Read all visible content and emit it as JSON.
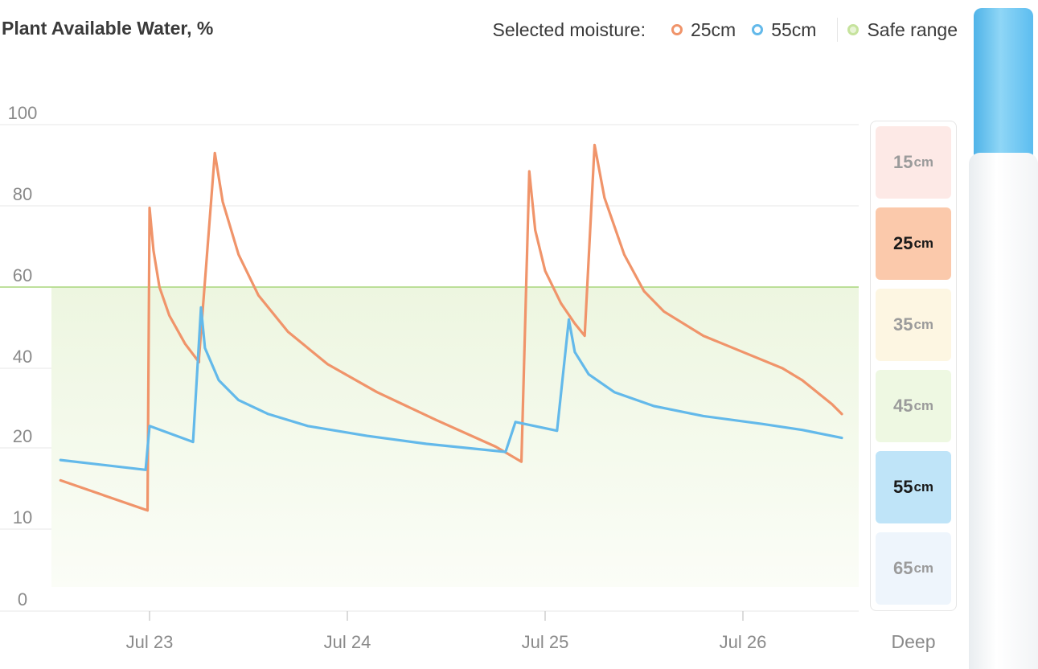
{
  "header": {
    "title": "Plant Available Water, %",
    "legend_prefix": "Selected moisture:",
    "legend_items": [
      {
        "label": "25cm",
        "color": "#f0946a"
      },
      {
        "label": "55cm",
        "color": "#63b9ea"
      },
      {
        "label": "Safe range",
        "color": "#b5d98a"
      }
    ]
  },
  "chart_data": {
    "type": "line",
    "title": "Plant Available Water, %",
    "y_ticks": [
      "100",
      "80",
      "60",
      "40",
      "20",
      "10",
      "0"
    ],
    "x_ticks": [
      "Jul 23",
      "Jul 24",
      "Jul 25",
      "Jul 26"
    ],
    "safe_range": [
      0,
      60
    ],
    "x_unit": "days from Jul 22 00:00",
    "series": [
      {
        "name": "25cm",
        "color": "#f0946a",
        "points": [
          [
            0.55,
            16.0
          ],
          [
            0.99,
            12.3
          ],
          [
            1.0,
            79.5
          ],
          [
            1.02,
            69
          ],
          [
            1.05,
            60
          ],
          [
            1.1,
            53
          ],
          [
            1.18,
            46
          ],
          [
            1.25,
            41.5
          ],
          [
            1.25,
            42.5
          ],
          [
            1.33,
            93
          ],
          [
            1.37,
            81
          ],
          [
            1.45,
            68
          ],
          [
            1.55,
            58
          ],
          [
            1.7,
            49
          ],
          [
            1.9,
            41
          ],
          [
            2.15,
            34
          ],
          [
            2.45,
            27
          ],
          [
            2.75,
            20.3
          ],
          [
            2.88,
            18.3
          ],
          [
            2.92,
            88.5
          ],
          [
            2.95,
            74
          ],
          [
            3.0,
            64
          ],
          [
            3.08,
            56
          ],
          [
            3.15,
            51
          ],
          [
            3.2,
            48
          ],
          [
            3.25,
            95
          ],
          [
            3.3,
            82
          ],
          [
            3.4,
            68
          ],
          [
            3.5,
            59
          ],
          [
            3.6,
            54
          ],
          [
            3.8,
            48
          ],
          [
            4.0,
            44
          ],
          [
            4.2,
            40
          ],
          [
            4.3,
            37
          ],
          [
            4.45,
            31
          ],
          [
            4.5,
            28.5
          ]
        ]
      },
      {
        "name": "55cm",
        "color": "#63b9ea",
        "points": [
          [
            0.55,
            18.5
          ],
          [
            0.98,
            17.3
          ],
          [
            1.0,
            25.5
          ],
          [
            1.22,
            21.5
          ],
          [
            1.26,
            55
          ],
          [
            1.28,
            45
          ],
          [
            1.35,
            37
          ],
          [
            1.45,
            32
          ],
          [
            1.6,
            28.5
          ],
          [
            1.8,
            25.5
          ],
          [
            2.1,
            23
          ],
          [
            2.4,
            21
          ],
          [
            2.8,
            19.5
          ],
          [
            2.85,
            26.5
          ],
          [
            3.06,
            24.3
          ],
          [
            3.12,
            52
          ],
          [
            3.15,
            44
          ],
          [
            3.22,
            38.5
          ],
          [
            3.35,
            34
          ],
          [
            3.55,
            30.5
          ],
          [
            3.8,
            28
          ],
          [
            4.1,
            26
          ],
          [
            4.3,
            24.5
          ],
          [
            4.5,
            22.5
          ]
        ]
      }
    ],
    "ylim": [
      0,
      100
    ],
    "grid": true,
    "legend_position": "top-right"
  },
  "depth_panel": {
    "cells": [
      {
        "value": "15",
        "unit": "cm",
        "bg": "#fde9e6",
        "selected": false
      },
      {
        "value": "25",
        "unit": "cm",
        "bg": "#fbc9ab",
        "selected": true
      },
      {
        "value": "35",
        "unit": "cm",
        "bg": "#fdf6e2",
        "selected": false
      },
      {
        "value": "45",
        "unit": "cm",
        "bg": "#eef8e2",
        "selected": false
      },
      {
        "value": "55",
        "unit": "cm",
        "bg": "#bfe4f8",
        "selected": true
      },
      {
        "value": "65",
        "unit": "cm",
        "bg": "#eef5fc",
        "selected": false
      }
    ],
    "footer_label": "Deep"
  }
}
